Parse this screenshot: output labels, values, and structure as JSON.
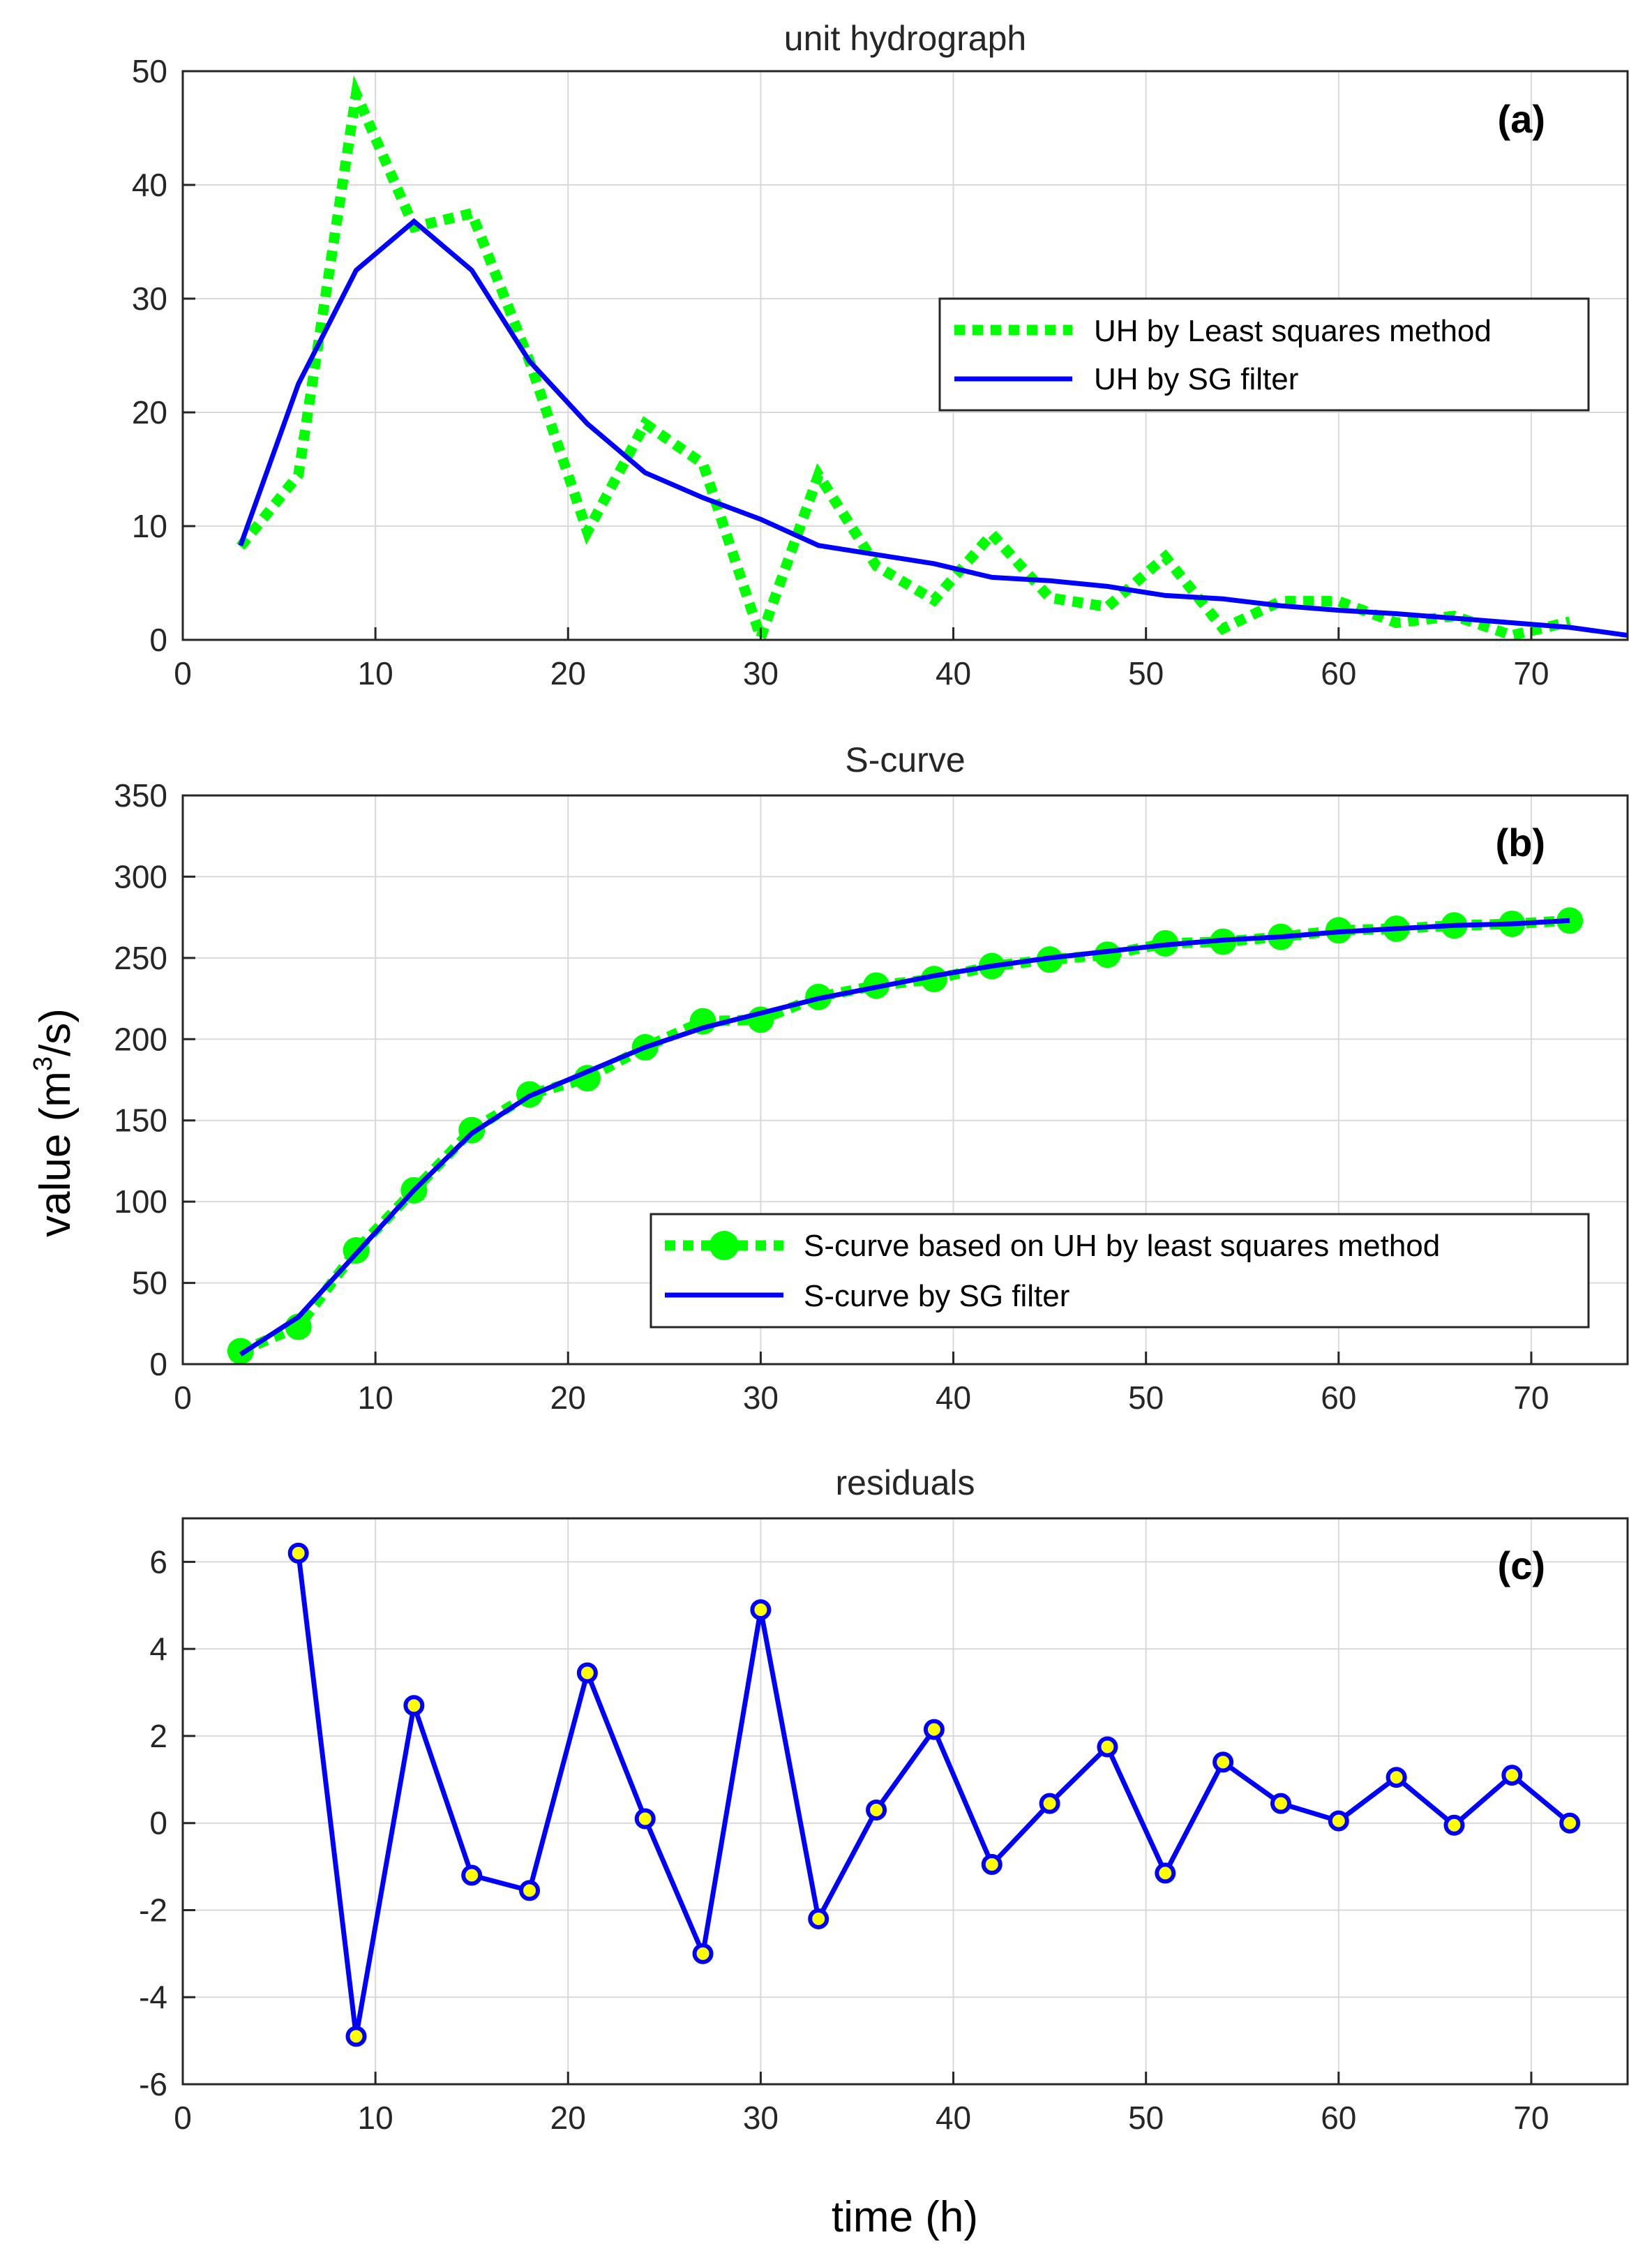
{
  "figure": {
    "ylabel": "value (m",
    "ylabel_sup": "3",
    "ylabel_tail": "/s)",
    "xlabel": "time (h)"
  },
  "chart_data": [
    {
      "type": "line",
      "id": "a",
      "title": "unit hydrograph",
      "panel_label": "(a)",
      "xlim": [
        0,
        75
      ],
      "ylim": [
        0,
        50
      ],
      "xticks": [
        0,
        10,
        20,
        30,
        40,
        50,
        60,
        70
      ],
      "yticks": [
        0,
        10,
        20,
        30,
        40,
        50
      ],
      "grid": true,
      "legend_position": "top-right",
      "series": [
        {
          "name": "UH by Least squares method",
          "style": "dotted",
          "color": "#00ff00",
          "x": [
            3,
            6,
            9,
            12,
            15,
            18,
            21,
            24,
            27,
            30,
            33,
            36,
            39,
            42,
            45,
            48,
            51,
            54,
            57,
            60,
            63,
            66,
            69,
            72
          ],
          "y": [
            8.2,
            14.5,
            48,
            36.3,
            37.5,
            24.5,
            9.5,
            19,
            15.5,
            0.2,
            14.5,
            6.5,
            3.5,
            9.3,
            3.7,
            2.9,
            7.3,
            1.0,
            3.4,
            3.4,
            1.5,
            2.1,
            0.4,
            1.6
          ]
        },
        {
          "name": "UH by SG filter",
          "style": "solid",
          "color": "#0000ff",
          "x": [
            3,
            6,
            9,
            12,
            15,
            18,
            21,
            24,
            27,
            30,
            33,
            36,
            39,
            42,
            45,
            48,
            51,
            54,
            57,
            60,
            63,
            66,
            69,
            72,
            75
          ],
          "y": [
            8.3,
            22.5,
            32.5,
            36.8,
            32.5,
            24.5,
            19.0,
            14.7,
            12.5,
            10.6,
            8.3,
            7.5,
            6.7,
            5.5,
            5.2,
            4.7,
            3.9,
            3.6,
            3.0,
            2.6,
            2.3,
            1.9,
            1.5,
            1.1,
            0.4
          ]
        }
      ]
    },
    {
      "type": "line",
      "id": "b",
      "title": "S-curve",
      "panel_label": "(b)",
      "xlim": [
        0,
        75
      ],
      "ylim": [
        0,
        350
      ],
      "xticks": [
        0,
        10,
        20,
        30,
        40,
        50,
        60,
        70
      ],
      "yticks": [
        0,
        50,
        100,
        150,
        200,
        250,
        300,
        350
      ],
      "grid": true,
      "legend_position": "bottom-right",
      "series": [
        {
          "name": "S-curve based on UH by least squares method",
          "style": "dotted-markers",
          "color": "#00ff00",
          "x": [
            3,
            6,
            9,
            12,
            15,
            18,
            21,
            24,
            27,
            30,
            33,
            36,
            39,
            42,
            45,
            48,
            51,
            54,
            57,
            60,
            63,
            66,
            69,
            72
          ],
          "y": [
            8,
            23,
            70,
            107,
            144,
            166,
            176,
            195,
            211,
            212,
            226,
            233,
            237,
            245,
            249,
            252,
            259,
            260,
            263,
            267,
            268,
            270,
            271,
            273
          ]
        },
        {
          "name": "S-curve by SG filter",
          "style": "solid",
          "color": "#0000ff",
          "x": [
            3,
            6,
            9,
            12,
            15,
            18,
            21,
            24,
            27,
            30,
            33,
            36,
            39,
            42,
            45,
            48,
            51,
            54,
            57,
            60,
            63,
            66,
            69,
            72
          ],
          "y": [
            6,
            29,
            68,
            107,
            142,
            165,
            180,
            195,
            207,
            216,
            225,
            232,
            239,
            245,
            250,
            254,
            258,
            261,
            263,
            266,
            268,
            270,
            271,
            273
          ]
        }
      ]
    },
    {
      "type": "line",
      "id": "c",
      "title": "residuals",
      "panel_label": "(c)",
      "xlim": [
        0,
        75
      ],
      "ylim": [
        -6,
        7
      ],
      "xticks": [
        0,
        10,
        20,
        30,
        40,
        50,
        60,
        70
      ],
      "yticks": [
        -6,
        -4,
        -2,
        0,
        2,
        4,
        6
      ],
      "ytick_labels": [
        "-6",
        "-4",
        "-2",
        "0",
        "2",
        "4",
        "6"
      ],
      "grid": true,
      "series": [
        {
          "name": "residuals",
          "style": "solid-markers",
          "color": "#0000ff",
          "marker_face": "#ffff00",
          "x": [
            6,
            9,
            12,
            15,
            18,
            21,
            24,
            27,
            30,
            33,
            36,
            39,
            42,
            45,
            48,
            51,
            54,
            57,
            60,
            63,
            66,
            69,
            72
          ],
          "y": [
            6.2,
            -4.9,
            2.7,
            -1.2,
            -1.55,
            3.45,
            0.1,
            -3.0,
            4.9,
            -2.2,
            0.3,
            2.15,
            -0.95,
            0.45,
            1.75,
            -1.15,
            1.4,
            0.45,
            0.05,
            1.05,
            -0.05,
            1.1,
            0.0
          ]
        }
      ]
    }
  ]
}
